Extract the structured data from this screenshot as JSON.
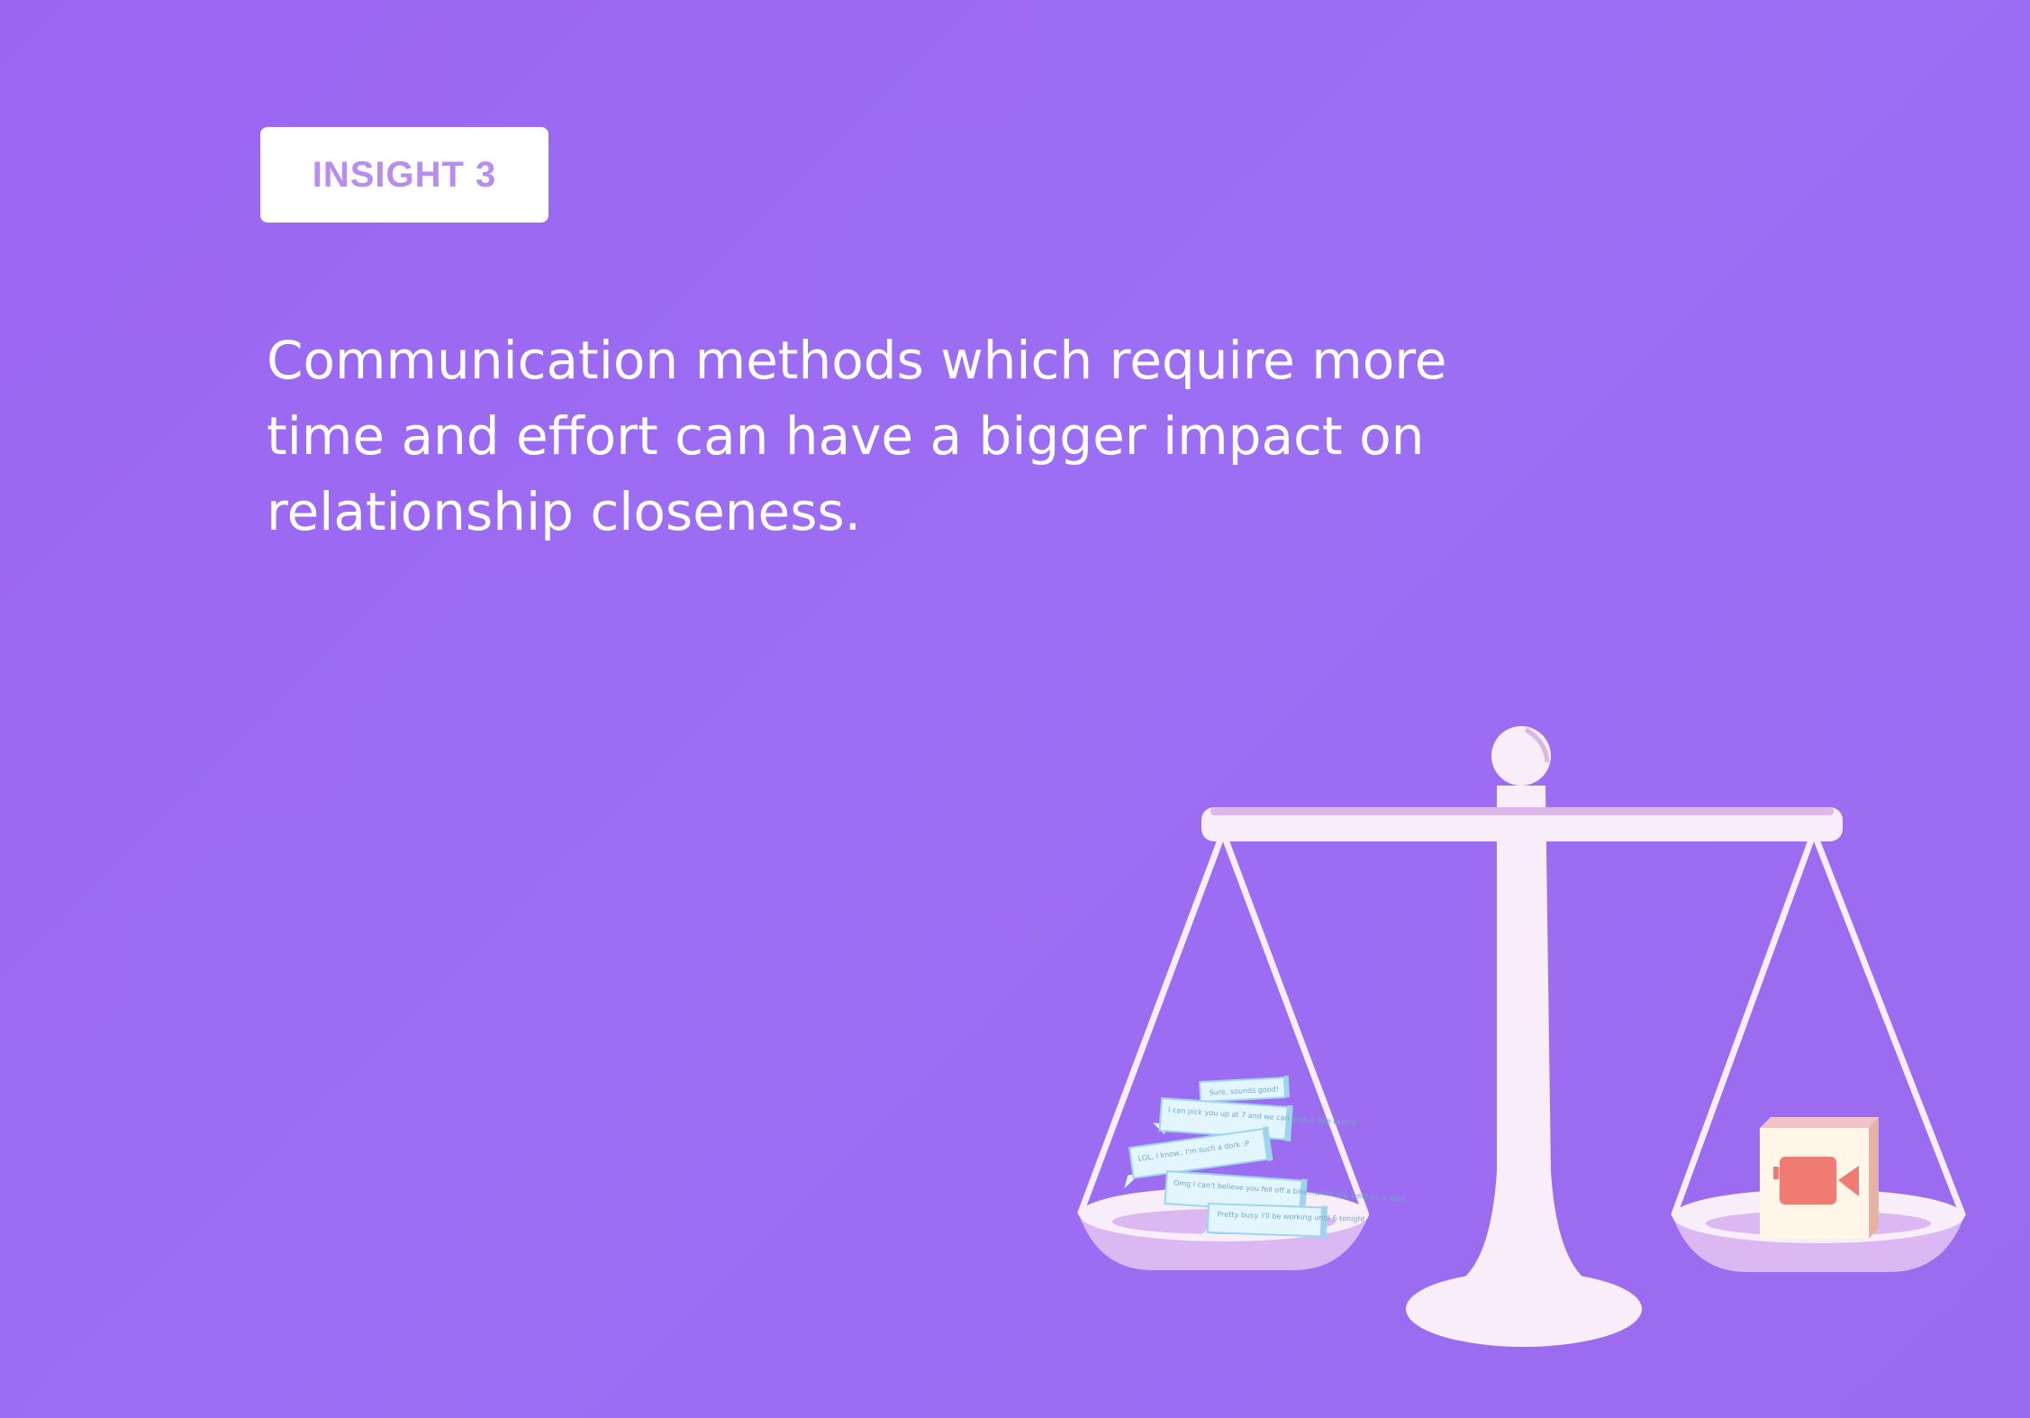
{
  "badge": {
    "label": "INSIGHT 3"
  },
  "headline": {
    "text": "Communication methods which require more time and effort can have a bigger impact on relationship closeness."
  },
  "illustration": {
    "left_pan_messages": [
      "Sure, sounds good!",
      "I can pick you up at 7 and we can grab a bite before",
      "LOL, I know.. I'm such a dork :P",
      "Omg I can't believe you fell off a bike...while you were on a date",
      "Pretty busy. I'll be working until 6 tonight"
    ],
    "right_pan_icon": "video-camera-icon"
  },
  "colors": {
    "background": "#9b65f2",
    "badge_text": "#b88ded",
    "scale": "#f8eefa",
    "pan_inner": "#dcb8f3",
    "bubble": "#e3f6fd",
    "bubble_edge": "#9fd4ef",
    "camera": "#f07b72"
  }
}
